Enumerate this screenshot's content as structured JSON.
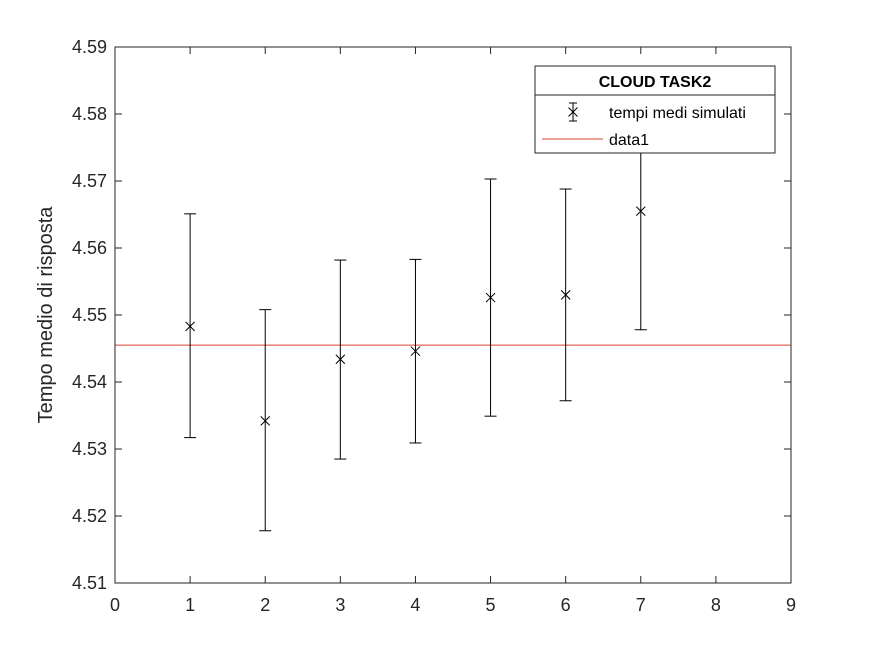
{
  "chart_data": {
    "type": "scatter",
    "ylabel": "Tempo medio di risposta",
    "xlabel": "",
    "xlim": [
      0,
      9
    ],
    "ylim": [
      4.51,
      4.59
    ],
    "x_ticks": [
      "0",
      "1",
      "2",
      "3",
      "4",
      "5",
      "6",
      "7",
      "8",
      "9"
    ],
    "y_ticks": [
      "4.51",
      "4.52",
      "4.53",
      "4.54",
      "4.55",
      "4.56",
      "4.57",
      "4.58",
      "4.59"
    ],
    "grid": false,
    "legend": {
      "title": "CLOUD TASK2",
      "placement": "top-right",
      "entries": [
        "tempi medi simulati",
        "data1"
      ]
    },
    "series": [
      {
        "name": "tempi medi simulati",
        "marker": "x",
        "color": "#000000",
        "points": [
          {
            "x": 1,
            "y": 4.5483,
            "low": 4.5317,
            "high": 4.5651
          },
          {
            "x": 2,
            "y": 4.5342,
            "low": 4.5178,
            "high": 4.5508
          },
          {
            "x": 3,
            "y": 4.5434,
            "low": 4.5285,
            "high": 4.5582
          },
          {
            "x": 4,
            "y": 4.5446,
            "low": 4.5309,
            "high": 4.5583
          },
          {
            "x": 5,
            "y": 4.5526,
            "low": 4.5349,
            "high": 4.5703
          },
          {
            "x": 6,
            "y": 4.553,
            "low": 4.5372,
            "high": 4.5688
          },
          {
            "x": 7,
            "y": 4.5655,
            "low": 4.5478,
            "high": 4.5832
          }
        ]
      },
      {
        "name": "data1",
        "type": "line",
        "color": "#d9422b",
        "y": 4.5455
      }
    ]
  }
}
